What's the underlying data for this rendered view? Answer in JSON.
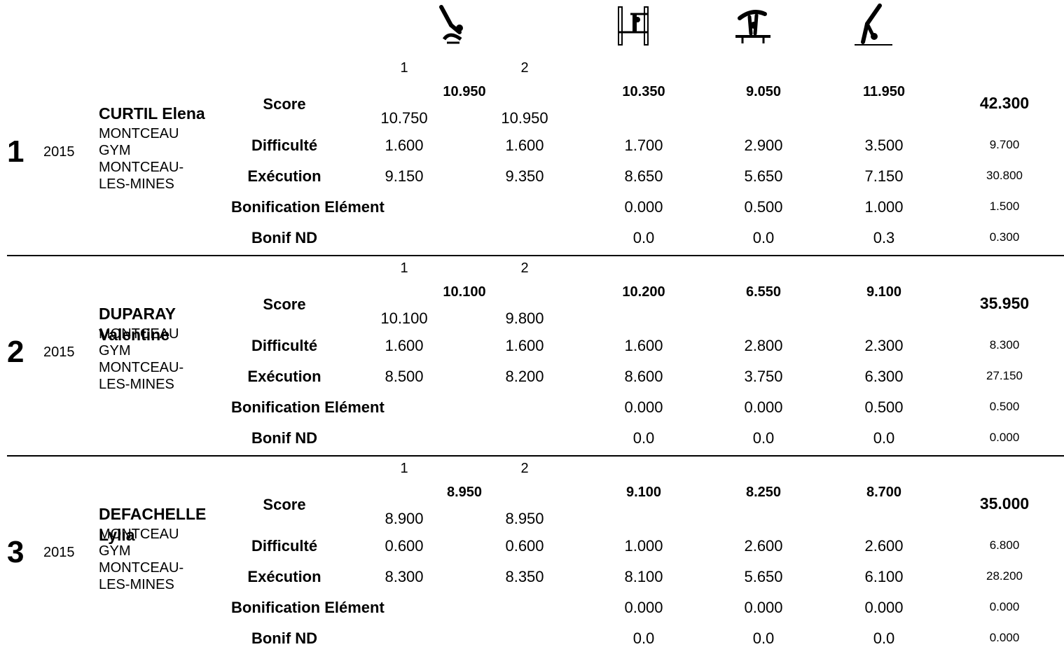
{
  "apparatus_icons": [
    "vault-icon",
    "uneven-bars-icon",
    "balance-beam-icon",
    "floor-exercise-icon"
  ],
  "row_labels": {
    "score": "Score",
    "difficulty": "Difficulté",
    "execution": "Exécution",
    "bonus_element": "Bonification Elément",
    "bonus_nd": "Bonif ND"
  },
  "athletes": [
    {
      "rank": "1",
      "year": "2015",
      "name": "CURTIL Elena",
      "club": "MONTCEAU GYM MONTCEAU-LES-MINES",
      "vault": {
        "attempt_labels": [
          "1",
          "2"
        ],
        "score": "10.950",
        "attempts": [
          {
            "score": "10.750",
            "difficulty": "1.600",
            "execution": "9.150"
          },
          {
            "score": "10.950",
            "difficulty": "1.600",
            "execution": "9.350"
          }
        ]
      },
      "bars": {
        "score": "10.350",
        "difficulty": "1.700",
        "execution": "8.650",
        "bonus_element": "0.000",
        "bonus_nd": "0.0"
      },
      "beam": {
        "score": "9.050",
        "difficulty": "2.900",
        "execution": "5.650",
        "bonus_element": "0.500",
        "bonus_nd": "0.0"
      },
      "floor": {
        "score": "11.950",
        "difficulty": "3.500",
        "execution": "7.150",
        "bonus_element": "1.000",
        "bonus_nd": "0.3"
      },
      "total": {
        "score": "42.300",
        "difficulty": "9.700",
        "execution": "30.800",
        "bonus_element": "1.500",
        "bonus_nd": "0.300"
      }
    },
    {
      "rank": "2",
      "year": "2015",
      "name": "DUPARAY Valentine",
      "club": "MONTCEAU GYM MONTCEAU-LES-MINES",
      "vault": {
        "attempt_labels": [
          "1",
          "2"
        ],
        "score": "10.100",
        "attempts": [
          {
            "score": "10.100",
            "difficulty": "1.600",
            "execution": "8.500"
          },
          {
            "score": "9.800",
            "difficulty": "1.600",
            "execution": "8.200"
          }
        ]
      },
      "bars": {
        "score": "10.200",
        "difficulty": "1.600",
        "execution": "8.600",
        "bonus_element": "0.000",
        "bonus_nd": "0.0"
      },
      "beam": {
        "score": "6.550",
        "difficulty": "2.800",
        "execution": "3.750",
        "bonus_element": "0.000",
        "bonus_nd": "0.0"
      },
      "floor": {
        "score": "9.100",
        "difficulty": "2.300",
        "execution": "6.300",
        "bonus_element": "0.500",
        "bonus_nd": "0.0"
      },
      "total": {
        "score": "35.950",
        "difficulty": "8.300",
        "execution": "27.150",
        "bonus_element": "0.500",
        "bonus_nd": "0.000"
      }
    },
    {
      "rank": "3",
      "year": "2015",
      "name": "DEFACHELLE Lylia",
      "club": "MONTCEAU GYM MONTCEAU-LES-MINES",
      "vault": {
        "attempt_labels": [
          "1",
          "2"
        ],
        "score": "8.950",
        "attempts": [
          {
            "score": "8.900",
            "difficulty": "0.600",
            "execution": "8.300"
          },
          {
            "score": "8.950",
            "difficulty": "0.600",
            "execution": "8.350"
          }
        ]
      },
      "bars": {
        "score": "9.100",
        "difficulty": "1.000",
        "execution": "8.100",
        "bonus_element": "0.000",
        "bonus_nd": "0.0"
      },
      "beam": {
        "score": "8.250",
        "difficulty": "2.600",
        "execution": "5.650",
        "bonus_element": "0.000",
        "bonus_nd": "0.0"
      },
      "floor": {
        "score": "8.700",
        "difficulty": "2.600",
        "execution": "6.100",
        "bonus_element": "0.000",
        "bonus_nd": "0.0"
      },
      "total": {
        "score": "35.000",
        "difficulty": "6.800",
        "execution": "28.200",
        "bonus_element": "0.000",
        "bonus_nd": "0.000"
      }
    }
  ]
}
